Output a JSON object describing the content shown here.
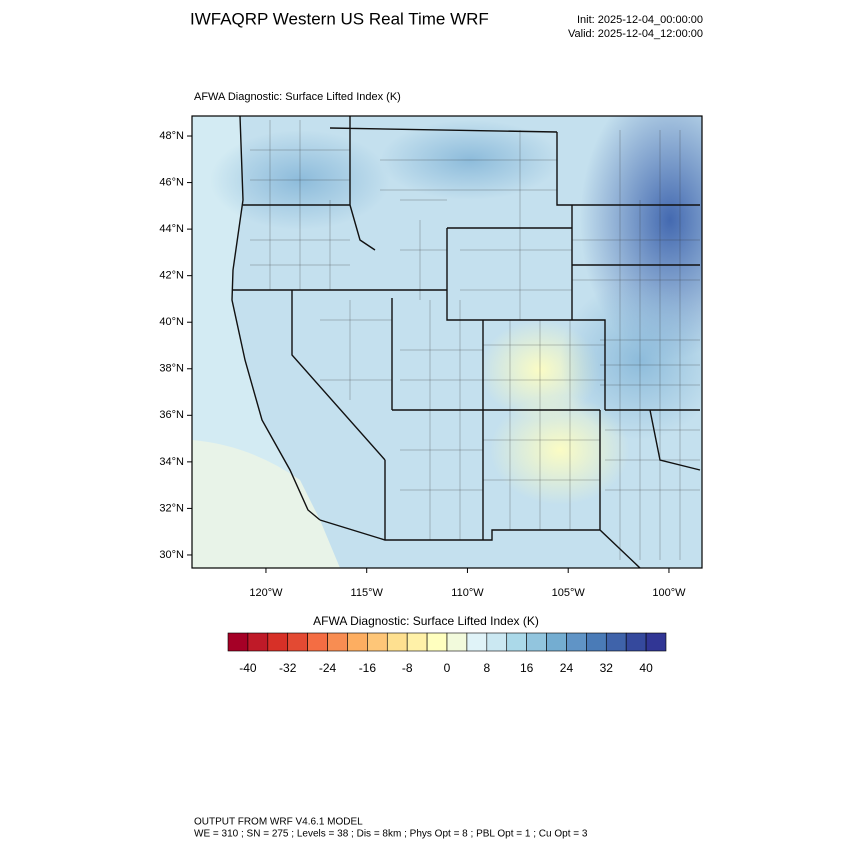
{
  "header": {
    "title": "IWFAQRP Western US Real Time WRF",
    "init": "Init: 2025-12-04_00:00:00",
    "valid": "Valid: 2025-12-04_12:00:00"
  },
  "map": {
    "subtitle": "AFWA Diagnostic: Surface Lifted Index   (K)",
    "xlim": [
      -123.67,
      -98.36
    ],
    "ylim": [
      29.44,
      48.86
    ],
    "xticks": [
      {
        "value": -120,
        "label": "120°W"
      },
      {
        "value": -115,
        "label": "115°W"
      },
      {
        "value": -110,
        "label": "110°W"
      },
      {
        "value": -105,
        "label": "105°W"
      },
      {
        "value": -100,
        "label": "100°W"
      }
    ],
    "yticks": [
      {
        "value": 30,
        "label": "30°N"
      },
      {
        "value": 32,
        "label": "32°N"
      },
      {
        "value": 34,
        "label": "34°N"
      },
      {
        "value": 36,
        "label": "36°N"
      },
      {
        "value": 38,
        "label": "38°N"
      },
      {
        "value": 40,
        "label": "40°N"
      },
      {
        "value": 42,
        "label": "42°N"
      },
      {
        "value": 44,
        "label": "44°N"
      },
      {
        "value": 46,
        "label": "46°N"
      },
      {
        "value": 48,
        "label": "48°N"
      }
    ]
  },
  "colorbar": {
    "title": "AFWA Diagnostic: Surface Lifted Index  (K)",
    "levels": [
      -40,
      -36,
      -32,
      -28,
      -24,
      -20,
      -16,
      -12,
      -8,
      -4,
      0,
      4,
      8,
      12,
      16,
      20,
      24,
      28,
      32,
      36,
      40
    ],
    "ticks": [
      -40,
      -32,
      -24,
      -16,
      -8,
      0,
      8,
      16,
      24,
      32,
      40
    ],
    "colors": [
      "#a50026",
      "#bf1a28",
      "#d73027",
      "#e34a33",
      "#f46d43",
      "#f88d52",
      "#fdae61",
      "#fec678",
      "#fee090",
      "#fff1a8",
      "#ffffbf",
      "#f2fadc",
      "#e0f3f8",
      "#cbe8f2",
      "#abd9e9",
      "#92c5de",
      "#74add1",
      "#6094c6",
      "#4a7bb7",
      "#3f63aa",
      "#35499d",
      "#313695"
    ]
  },
  "footer": {
    "line1": "OUTPUT FROM WRF V4.6.1 MODEL",
    "line2": "WE = 310 ; SN = 275 ; Levels = 38 ; Dis = 8km ; Phys Opt = 8 ; PBL Opt = 1 ; Cu Opt = 3"
  }
}
